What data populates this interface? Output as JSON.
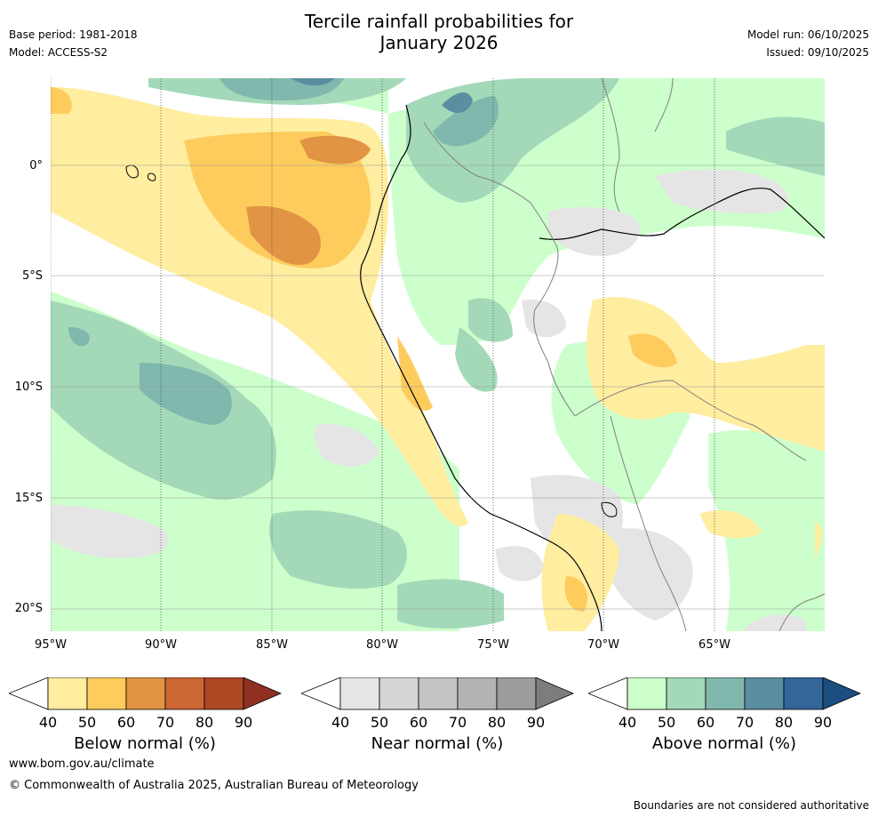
{
  "header": {
    "title_line1": "Tercile rainfall probabilities for",
    "title_line2": "January 2026",
    "base_period": "Base period: 1981-2018",
    "model": "Model: ACCESS-S2",
    "model_run": "Model run: 06/10/2025",
    "issued": "Issued: 09/10/2025"
  },
  "map": {
    "lat_labels": [
      "0°",
      "5°S",
      "10°S",
      "15°S",
      "20°S"
    ],
    "lon_labels": [
      "95°W",
      "90°W",
      "85°W",
      "80°W",
      "75°W",
      "70°W",
      "65°W"
    ],
    "extent": {
      "lon_min": -95,
      "lon_max": -60,
      "lat_min": -21,
      "lat_max": 4
    }
  },
  "legends": [
    {
      "title": "Below normal (%)",
      "ticks": [
        "40",
        "50",
        "60",
        "70",
        "80",
        "90"
      ],
      "colors": [
        "#ffeda0",
        "#fecc5c",
        "#e09444",
        "#cc6633",
        "#ae4825",
        "#8f3021"
      ]
    },
    {
      "title": "Near normal (%)",
      "ticks": [
        "40",
        "50",
        "60",
        "70",
        "80",
        "90"
      ],
      "colors": [
        "#e5e5e5",
        "#d6d6d6",
        "#c4c4c4",
        "#b3b3b3",
        "#9c9c9c",
        "#7d7d7d"
      ]
    },
    {
      "title": "Above normal (%)",
      "ticks": [
        "40",
        "50",
        "60",
        "70",
        "80",
        "90"
      ],
      "colors": [
        "#ccffcc",
        "#a3d9b8",
        "#80b8ad",
        "#5a8ea0",
        "#336699",
        "#1a4d80"
      ]
    }
  ],
  "footer": {
    "url": "www.bom.gov.au/climate",
    "copyright": "© Commonwealth of Australia 2025, Australian Bureau of Meteorology",
    "disclaimer": "Boundaries are not considered authoritative"
  }
}
